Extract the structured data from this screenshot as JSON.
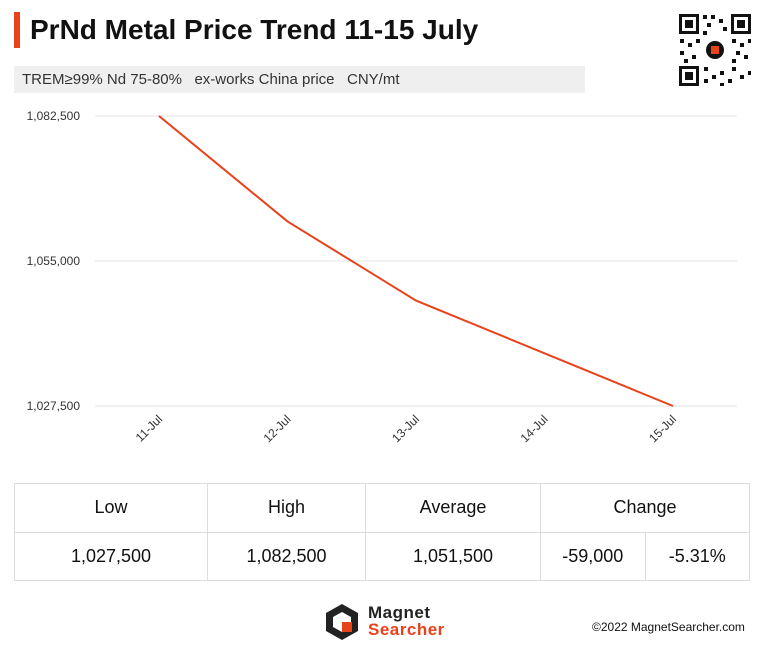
{
  "header": {
    "title_main": "PrNd Metal Price Trend",
    "title_dates": "11-15 July",
    "subtitle": "TREM≥99% Nd 75-80%   ex-works China price   CNY/mt"
  },
  "chart_data": {
    "type": "line",
    "categories": [
      "11-Jul",
      "12-Jul",
      "13-Jul",
      "14-Jul",
      "15-Jul"
    ],
    "series": [
      {
        "values": [
          1082500,
          1062500,
          1047500,
          1037500,
          1027500
        ]
      }
    ],
    "y_ticks": [
      "1,082,500",
      "1,055,000",
      "1,027,500"
    ],
    "y_tick_values": [
      1082500,
      1055000,
      1027500
    ],
    "ylim": [
      1027500,
      1082500
    ],
    "grid": true,
    "line_color": "#e8421b"
  },
  "stats": {
    "headers": [
      "Low",
      "High",
      "Average",
      "Change"
    ],
    "values": [
      "1,027,500",
      "1,082,500",
      "1,051,500",
      "-59,000",
      "-5.31%"
    ]
  },
  "footer": {
    "logo_line1": "Magnet",
    "logo_line2": "Searcher",
    "copyright": "©2022 MagnetSearcher.com"
  },
  "icons": {
    "qr": "qr-code-icon",
    "logo": "magnet-searcher-logo-icon"
  }
}
